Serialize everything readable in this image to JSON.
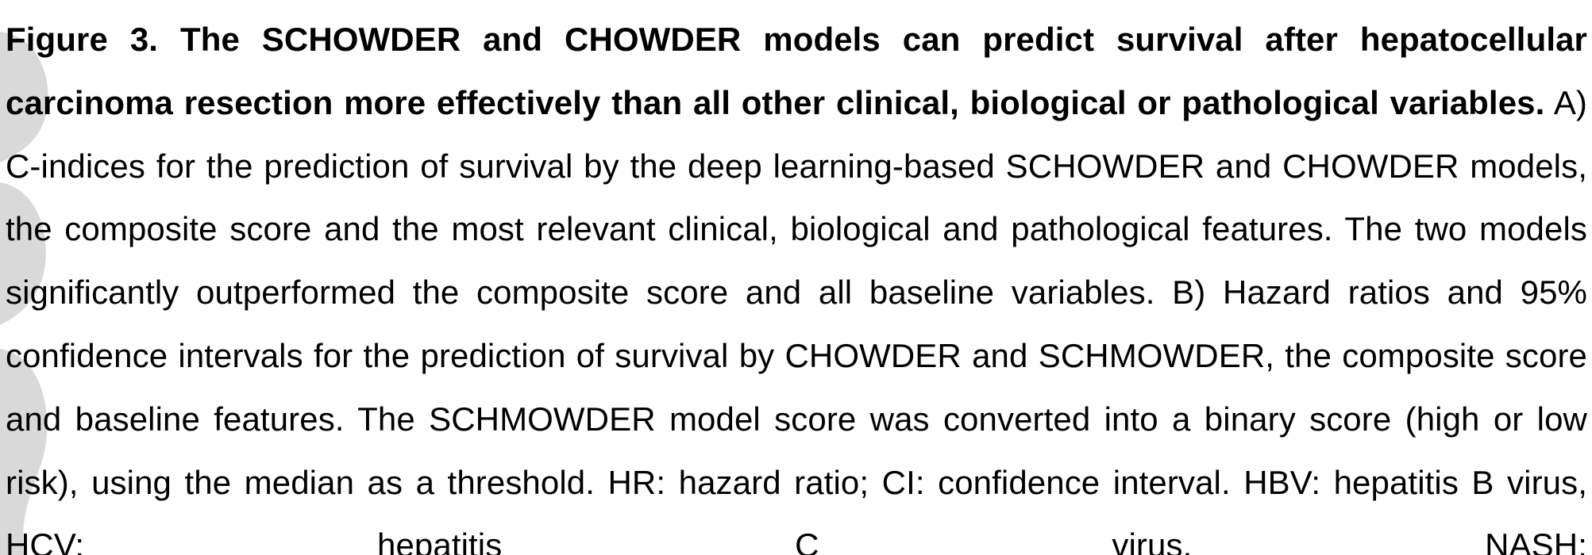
{
  "caption": {
    "figure_label": "Figure 3.",
    "title": "The SCHOWDER and CHOWDER models can predict survival after hepatocellular carcinoma resection more effectively than all other clinical, biological or pathological variables.",
    "body": "A) C-indices for the prediction of survival by the deep learning-based SCHOWDER and CHOWDER models, the composite score and the most relevant clinical, biological and pathological features. The two models significantly outperformed the composite score and all baseline variables. B) Hazard ratios and 95% confidence intervals for the prediction of survival by CHOWDER and SCHMOWDER, the composite score and baseline features. The SCHMOWDER model score was converted into a binary score (high or low risk), using the median as a threshold. HR: hazard ratio; CI: confidence interval. HBV: hepatitis B virus, HCV: hepatitis C virus, NASH:"
  },
  "colors": {
    "text": "#000000",
    "background": "#ffffff",
    "watermark": "#d9d9d9"
  }
}
